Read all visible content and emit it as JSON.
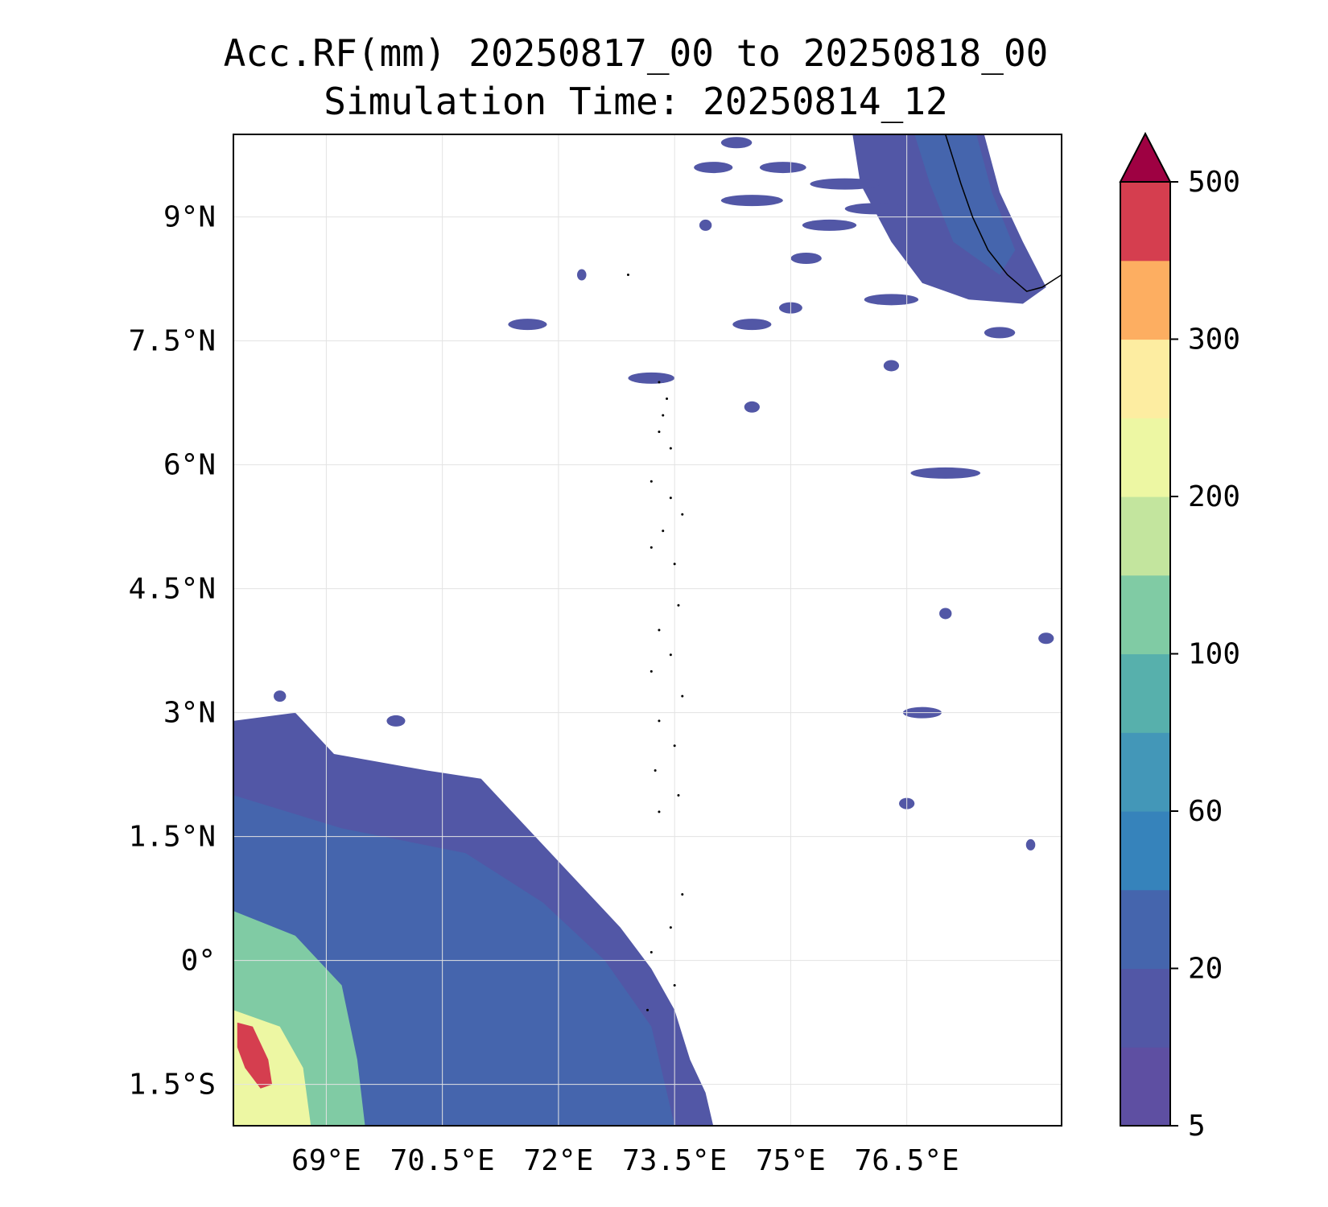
{
  "map": {
    "title_line_1": "Acc.RF(mm) 20250817_00 to 20250818_00",
    "title_line_2": "Simulation Time: 20250814_12",
    "extent": {
      "lon": [
        67.8,
        78.5
      ],
      "lat": [
        -2.0,
        10.0
      ]
    },
    "gridlines": true,
    "lon_ticks": [
      {
        "value": 69.0,
        "label": "69°E"
      },
      {
        "value": 70.5,
        "label": "70.5°E"
      },
      {
        "value": 72.0,
        "label": "72°E"
      },
      {
        "value": 73.5,
        "label": "73.5°E"
      },
      {
        "value": 75.0,
        "label": "75°E"
      },
      {
        "value": 76.5,
        "label": "76.5°E"
      }
    ],
    "lat_ticks": [
      {
        "value": 9.0,
        "label": "9°N"
      },
      {
        "value": 7.5,
        "label": "7.5°N"
      },
      {
        "value": 6.0,
        "label": "6°N"
      },
      {
        "value": 4.5,
        "label": "4.5°N"
      },
      {
        "value": 3.0,
        "label": "3°N"
      },
      {
        "value": 1.5,
        "label": "1.5°N"
      },
      {
        "value": 0.0,
        "label": "0°"
      },
      {
        "value": -1.5,
        "label": "1.5°S"
      }
    ],
    "regions": {
      "sw_rain_field": {
        "outline": [
          [
            67.8,
            2.9
          ],
          [
            68.6,
            3.0
          ],
          [
            69.1,
            2.5
          ],
          [
            70.3,
            2.3
          ],
          [
            71.0,
            2.2
          ],
          [
            71.6,
            1.6
          ],
          [
            72.2,
            1.0
          ],
          [
            72.8,
            0.4
          ],
          [
            73.2,
            -0.1
          ],
          [
            73.5,
            -0.6
          ],
          [
            73.7,
            -1.2
          ],
          [
            73.9,
            -1.6
          ],
          [
            74.0,
            -2.0
          ],
          [
            67.8,
            -2.0
          ]
        ],
        "inner": [
          [
            67.8,
            2.0
          ],
          [
            69.2,
            1.6
          ],
          [
            70.8,
            1.3
          ],
          [
            71.8,
            0.7
          ],
          [
            72.6,
            0.0
          ],
          [
            73.2,
            -0.8
          ],
          [
            73.5,
            -2.0
          ],
          [
            67.8,
            -2.0
          ]
        ],
        "heavy": [
          [
            67.8,
            0.6
          ],
          [
            68.6,
            0.3
          ],
          [
            69.2,
            -0.3
          ],
          [
            69.4,
            -1.2
          ],
          [
            69.5,
            -2.0
          ],
          [
            67.8,
            -2.0
          ]
        ],
        "core": [
          [
            67.8,
            -0.6
          ],
          [
            68.4,
            -0.8
          ],
          [
            68.7,
            -1.3
          ],
          [
            68.8,
            -2.0
          ],
          [
            67.8,
            -2.0
          ]
        ],
        "extreme": [
          [
            67.85,
            -0.75
          ],
          [
            68.05,
            -0.8
          ],
          [
            68.25,
            -1.2
          ],
          [
            68.3,
            -1.5
          ],
          [
            68.15,
            -1.55
          ],
          [
            67.95,
            -1.3
          ],
          [
            67.85,
            -1.05
          ]
        ]
      },
      "ne_rain_field": {
        "outline": [
          [
            75.8,
            10.0
          ],
          [
            77.5,
            10.0
          ],
          [
            77.7,
            9.3
          ],
          [
            78.0,
            8.7
          ],
          [
            78.3,
            8.15
          ],
          [
            78.0,
            7.95
          ],
          [
            77.3,
            8.0
          ],
          [
            76.7,
            8.2
          ],
          [
            76.3,
            8.7
          ],
          [
            75.9,
            9.4
          ]
        ],
        "inner": [
          [
            76.6,
            10.0
          ],
          [
            77.4,
            10.0
          ],
          [
            77.6,
            9.3
          ],
          [
            77.9,
            8.6
          ],
          [
            77.7,
            8.3
          ],
          [
            77.1,
            8.7
          ],
          [
            76.8,
            9.4
          ]
        ]
      },
      "coastline": [
        [
          77.0,
          10.0
        ],
        [
          77.1,
          9.7
        ],
        [
          77.2,
          9.4
        ],
        [
          77.35,
          9.0
        ],
        [
          77.55,
          8.6
        ],
        [
          77.8,
          8.3
        ],
        [
          78.05,
          8.1
        ],
        [
          78.25,
          8.15
        ],
        [
          78.5,
          8.3
        ]
      ]
    },
    "islands": [
      [
        73.3,
        7.0
      ],
      [
        73.4,
        6.8
      ],
      [
        73.35,
        6.6
      ],
      [
        73.3,
        6.4
      ],
      [
        73.45,
        6.2
      ],
      [
        73.2,
        5.8
      ],
      [
        73.45,
        5.6
      ],
      [
        73.6,
        5.4
      ],
      [
        73.35,
        5.2
      ],
      [
        73.2,
        5.0
      ],
      [
        73.5,
        4.8
      ],
      [
        73.55,
        4.3
      ],
      [
        73.3,
        4.0
      ],
      [
        73.45,
        3.7
      ],
      [
        73.2,
        3.5
      ],
      [
        73.6,
        3.2
      ],
      [
        73.3,
        2.9
      ],
      [
        73.5,
        2.6
      ],
      [
        73.25,
        2.3
      ],
      [
        73.55,
        2.0
      ],
      [
        73.3,
        1.8
      ],
      [
        73.6,
        0.8
      ],
      [
        73.45,
        0.4
      ],
      [
        73.2,
        0.1
      ],
      [
        73.15,
        -0.6
      ],
      [
        73.5,
        -0.3
      ],
      [
        72.9,
        8.3
      ]
    ],
    "scattered_cells": [
      [
        71.6,
        7.7,
        0.25
      ],
      [
        74.5,
        7.7,
        0.25
      ],
      [
        73.2,
        7.05,
        0.3
      ],
      [
        76.3,
        7.2,
        0.1
      ],
      [
        74.5,
        6.7,
        0.1
      ],
      [
        77.0,
        5.9,
        0.45
      ],
      [
        77.0,
        4.2,
        0.08
      ],
      [
        78.3,
        3.9,
        0.1
      ],
      [
        76.7,
        3.0,
        0.25
      ],
      [
        76.5,
        1.9,
        0.1
      ],
      [
        78.1,
        1.4,
        0.06
      ],
      [
        75.0,
        7.9,
        0.15
      ],
      [
        72.3,
        8.3,
        0.06
      ],
      [
        77.7,
        7.6,
        0.2
      ],
      [
        69.9,
        2.9,
        0.12
      ],
      [
        68.4,
        3.2,
        0.08
      ]
    ],
    "ne_cells": [
      [
        75.7,
        9.4,
        0.45
      ],
      [
        74.5,
        9.2,
        0.4
      ],
      [
        74.9,
        9.6,
        0.3
      ],
      [
        76.1,
        9.1,
        0.4
      ],
      [
        75.5,
        8.9,
        0.35
      ],
      [
        75.2,
        8.5,
        0.2
      ],
      [
        74.3,
        9.9,
        0.2
      ],
      [
        76.3,
        8.0,
        0.35
      ],
      [
        74.0,
        9.6,
        0.25
      ],
      [
        73.9,
        8.9,
        0.08
      ]
    ]
  },
  "colorbar": {
    "ticks": [
      {
        "value": 5,
        "label": "5"
      },
      {
        "value": 20,
        "label": "20"
      },
      {
        "value": 60,
        "label": "60"
      },
      {
        "value": 100,
        "label": "100"
      },
      {
        "value": 200,
        "label": "200"
      },
      {
        "value": 300,
        "label": "300"
      },
      {
        "value": 500,
        "label": "500"
      }
    ],
    "levels": [
      5,
      10,
      20,
      40,
      60,
      80,
      100,
      150,
      200,
      250,
      300,
      400,
      500
    ],
    "colors": [
      "#5e4fa2",
      "#5257a6",
      "#4565ad",
      "#3683bb",
      "#4397b8",
      "#57b0ac",
      "#80cba4",
      "#c3e59e",
      "#edf7a3",
      "#fdeda1",
      "#fdae61",
      "#d53e4f"
    ],
    "extend_color": "#9e0142"
  }
}
